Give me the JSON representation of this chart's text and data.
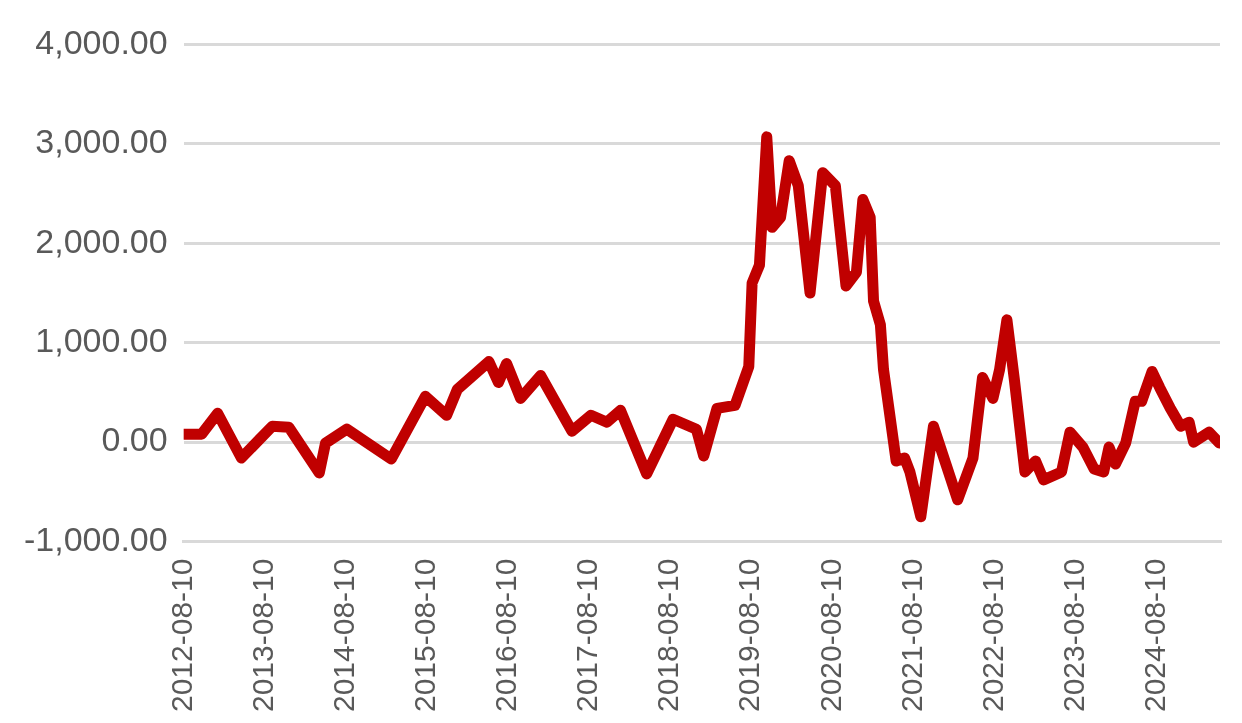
{
  "chart_data": {
    "type": "line",
    "x": [
      "2012-08-10",
      "2012-10-30",
      "2013-01-10",
      "2013-04-27",
      "2013-09-13",
      "2013-11-27",
      "2014-04-13",
      "2014-05-11",
      "2014-08-15",
      "2015-03-03",
      "2015-08-04",
      "2015-11-08",
      "2015-12-26",
      "2016-05-16",
      "2016-06-28",
      "2016-08-04",
      "2016-10-06",
      "2017-01-04",
      "2017-05-25",
      "2017-08-19",
      "2017-10-30",
      "2017-12-30",
      "2018-04-27",
      "2018-08-24",
      "2018-12-07",
      "2019-01-09",
      "2019-03-10",
      "2019-05-30",
      "2019-07-31",
      "2019-08-15",
      "2019-09-17",
      "2019-10-20",
      "2019-11-13",
      "2019-12-21",
      "2020-01-29",
      "2020-03-10",
      "2020-05-02",
      "2020-06-28",
      "2020-08-24",
      "2020-10-11",
      "2020-11-27",
      "2020-12-26",
      "2021-01-28",
      "2021-02-12",
      "2021-03-15",
      "2021-03-29",
      "2021-05-25",
      "2021-07-02",
      "2021-07-26",
      "2021-09-13",
      "2021-11-09",
      "2022-01-04",
      "2022-02-26",
      "2022-05-06",
      "2022-06-18",
      "2022-08-04",
      "2022-09-03",
      "2022-10-06",
      "2022-11-09",
      "2022-12-26",
      "2023-02-12",
      "2023-03-20",
      "2023-06-09",
      "2023-07-17",
      "2023-09-13",
      "2023-11-03",
      "2023-12-16",
      "2024-01-09",
      "2024-02-07",
      "2024-03-24",
      "2024-05-06",
      "2024-06-04",
      "2024-07-21",
      "2024-08-24",
      "2024-10-11",
      "2024-11-27",
      "2025-01-04",
      "2025-01-24",
      "2025-04-04",
      "2025-05-20"
    ],
    "series": [
      {
        "color": "#c00000",
        "values": [
          80,
          80,
          290,
          -160,
          160,
          150,
          -310,
          -10,
          130,
          -170,
          460,
          270,
          530,
          810,
          600,
          790,
          440,
          670,
          110,
          270,
          200,
          320,
          -320,
          230,
          130,
          -140,
          340,
          370,
          760,
          1600,
          1780,
          3070,
          2160,
          2260,
          2830,
          2580,
          1500,
          2710,
          2580,
          1570,
          1710,
          2440,
          2260,
          1420,
          1180,
          730,
          -190,
          -160,
          -300,
          -750,
          160,
          -220,
          -580,
          -160,
          650,
          440,
          730,
          1230,
          620,
          -300,
          -190,
          -380,
          -300,
          100,
          -50,
          -270,
          -300,
          -50,
          -220,
          -10,
          410,
          410,
          710,
          550,
          340,
          160,
          200,
          0,
          100,
          -10
        ]
      }
    ],
    "xlim": [
      "2012-08-10",
      "2025-05-23"
    ],
    "xticks": [
      {
        "value": "2012-08-10",
        "label": "2012-08-10"
      },
      {
        "value": "2013-08-10",
        "label": "2013-08-10"
      },
      {
        "value": "2014-08-10",
        "label": "2014-08-10"
      },
      {
        "value": "2015-08-10",
        "label": "2015-08-10"
      },
      {
        "value": "2016-08-10",
        "label": "2016-08-10"
      },
      {
        "value": "2017-08-10",
        "label": "2017-08-10"
      },
      {
        "value": "2018-08-10",
        "label": "2018-08-10"
      },
      {
        "value": "2019-08-10",
        "label": "2019-08-10"
      },
      {
        "value": "2020-08-10",
        "label": "2020-08-10"
      },
      {
        "value": "2021-08-10",
        "label": "2021-08-10"
      },
      {
        "value": "2022-08-10",
        "label": "2022-08-10"
      },
      {
        "value": "2023-08-10",
        "label": "2023-08-10"
      },
      {
        "value": "2024-08-10",
        "label": "2024-08-10"
      }
    ],
    "ylim": [
      -1000,
      4000
    ],
    "yticks": [
      {
        "value": -1000,
        "label": "-1,000.00"
      },
      {
        "value": 0,
        "label": "0.00"
      },
      {
        "value": 1000,
        "label": "1,000.00"
      },
      {
        "value": 2000,
        "label": "2,000.00"
      },
      {
        "value": 3000,
        "label": "3,000.00"
      },
      {
        "value": 4000,
        "label": "4,000.00"
      }
    ],
    "grid": "y",
    "legend": false,
    "marker": "none",
    "line_style": "solid"
  }
}
